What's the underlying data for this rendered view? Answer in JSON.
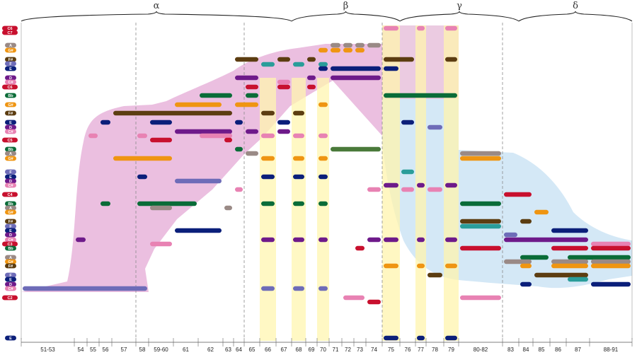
{
  "sections": [
    {
      "label": "α",
      "first": 0,
      "last": 13
    },
    {
      "label": "β",
      "first": 14,
      "last": 21
    },
    {
      "label": "γ",
      "first": 22,
      "last": 27
    },
    {
      "label": "δ",
      "first": 28,
      "last": 32
    }
  ],
  "bars": [
    "51-53",
    "54",
    "55",
    "56",
    "57",
    "58",
    "59-60",
    "61",
    "62",
    "63",
    "64",
    "65",
    "66",
    "67",
    "68",
    "69",
    "70",
    "71",
    "72",
    "73",
    "74",
    "75",
    "76",
    "77",
    "78",
    "79",
    "80-82",
    "83",
    "84",
    "85",
    "86",
    "87",
    "88-91"
  ],
  "notes": [
    "C6",
    "C7",
    "A",
    "G#",
    "F#",
    "F",
    "E",
    "D",
    "C#",
    "C6",
    "Bb",
    "G#",
    "F#",
    "E",
    "D",
    "C#",
    "C5",
    "Bb",
    "A",
    "G#",
    "F",
    "E",
    "D",
    "C#",
    "C4",
    "Bb",
    "A",
    "G#",
    "F#",
    "F",
    "E",
    "D",
    "C#",
    "C3",
    "Bb",
    "A",
    "G#",
    "F#",
    "F",
    "E",
    "D",
    "C#",
    "C2",
    "E"
  ],
  "colors": {
    "C": "#c8102e",
    "C#": "#e882b3",
    "D": "#6e1a8a",
    "E": "#0b1f7a",
    "F": "#6e6cb8",
    "F#": "#5c3d11",
    "G": "#2a9d9a",
    "G#": "#ef9512",
    "A": "#9a8a86",
    "Bb": "#0a6c38",
    "B": "#4a7a3a",
    "alpha_region": "#e9b8dd",
    "delta_region": "#cfe5f5",
    "beta_column": "#fff6b0",
    "gamma_column": "#fff4ae"
  }
}
